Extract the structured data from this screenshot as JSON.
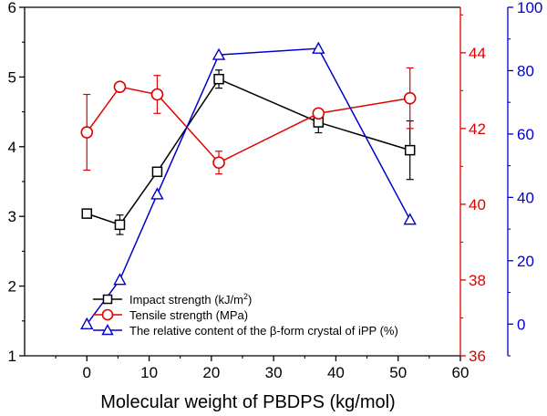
{
  "chart_data": {
    "type": "line",
    "xlabel": "Molecular weight of PBDPS (kg/mol)",
    "x_axis": {
      "range": [
        -10,
        60
      ],
      "ticks": [
        0,
        10,
        20,
        30,
        40,
        50,
        60
      ]
    },
    "y_axes": [
      {
        "side": "left",
        "range": [
          1,
          6
        ],
        "ticks": [
          1,
          2,
          3,
          4,
          5,
          6
        ],
        "color": "#000000"
      },
      {
        "side": "right",
        "range": [
          36,
          45.2
        ],
        "ticks": [
          36,
          38,
          40,
          42,
          44
        ],
        "color": "#e00000"
      },
      {
        "side": "right-outer",
        "range": [
          -10,
          100
        ],
        "ticks": [
          0,
          20,
          40,
          60,
          80,
          100
        ],
        "color": "#0000cc"
      }
    ],
    "series": [
      {
        "name": "Impact strength (kJ/m",
        "name_sup": "2",
        "name_suffix": ")",
        "axis": 0,
        "color": "#000000",
        "marker": "square-cross",
        "x": [
          0,
          5.3,
          11.3,
          21.2,
          37.2,
          51.9
        ],
        "y": [
          3.04,
          2.88,
          3.64,
          4.97,
          4.35,
          3.95
        ],
        "err": [
          0.04,
          0.14,
          0.05,
          0.13,
          0.15,
          0.42
        ]
      },
      {
        "name": "Tensile strength (MPa)",
        "axis": 1,
        "color": "#e00000",
        "marker": "circle",
        "x": [
          0,
          5.3,
          11.3,
          21.2,
          37.2,
          51.9
        ],
        "y": [
          41.9,
          43.1,
          42.9,
          41.1,
          42.4,
          42.8
        ],
        "err": [
          1.0,
          0.1,
          0.5,
          0.3,
          0.1,
          0.8
        ]
      },
      {
        "name": "The relative content of the β-form crystal of iPP (%)",
        "axis": 2,
        "color": "#0000cc",
        "marker": "triangle",
        "x": [
          0,
          5.3,
          11.3,
          21.2,
          37.2,
          51.9
        ],
        "y": [
          0,
          14,
          41,
          85,
          87,
          33
        ],
        "err": null
      }
    ],
    "legend_position": "bottom-left (inside plot)",
    "grid": false
  }
}
